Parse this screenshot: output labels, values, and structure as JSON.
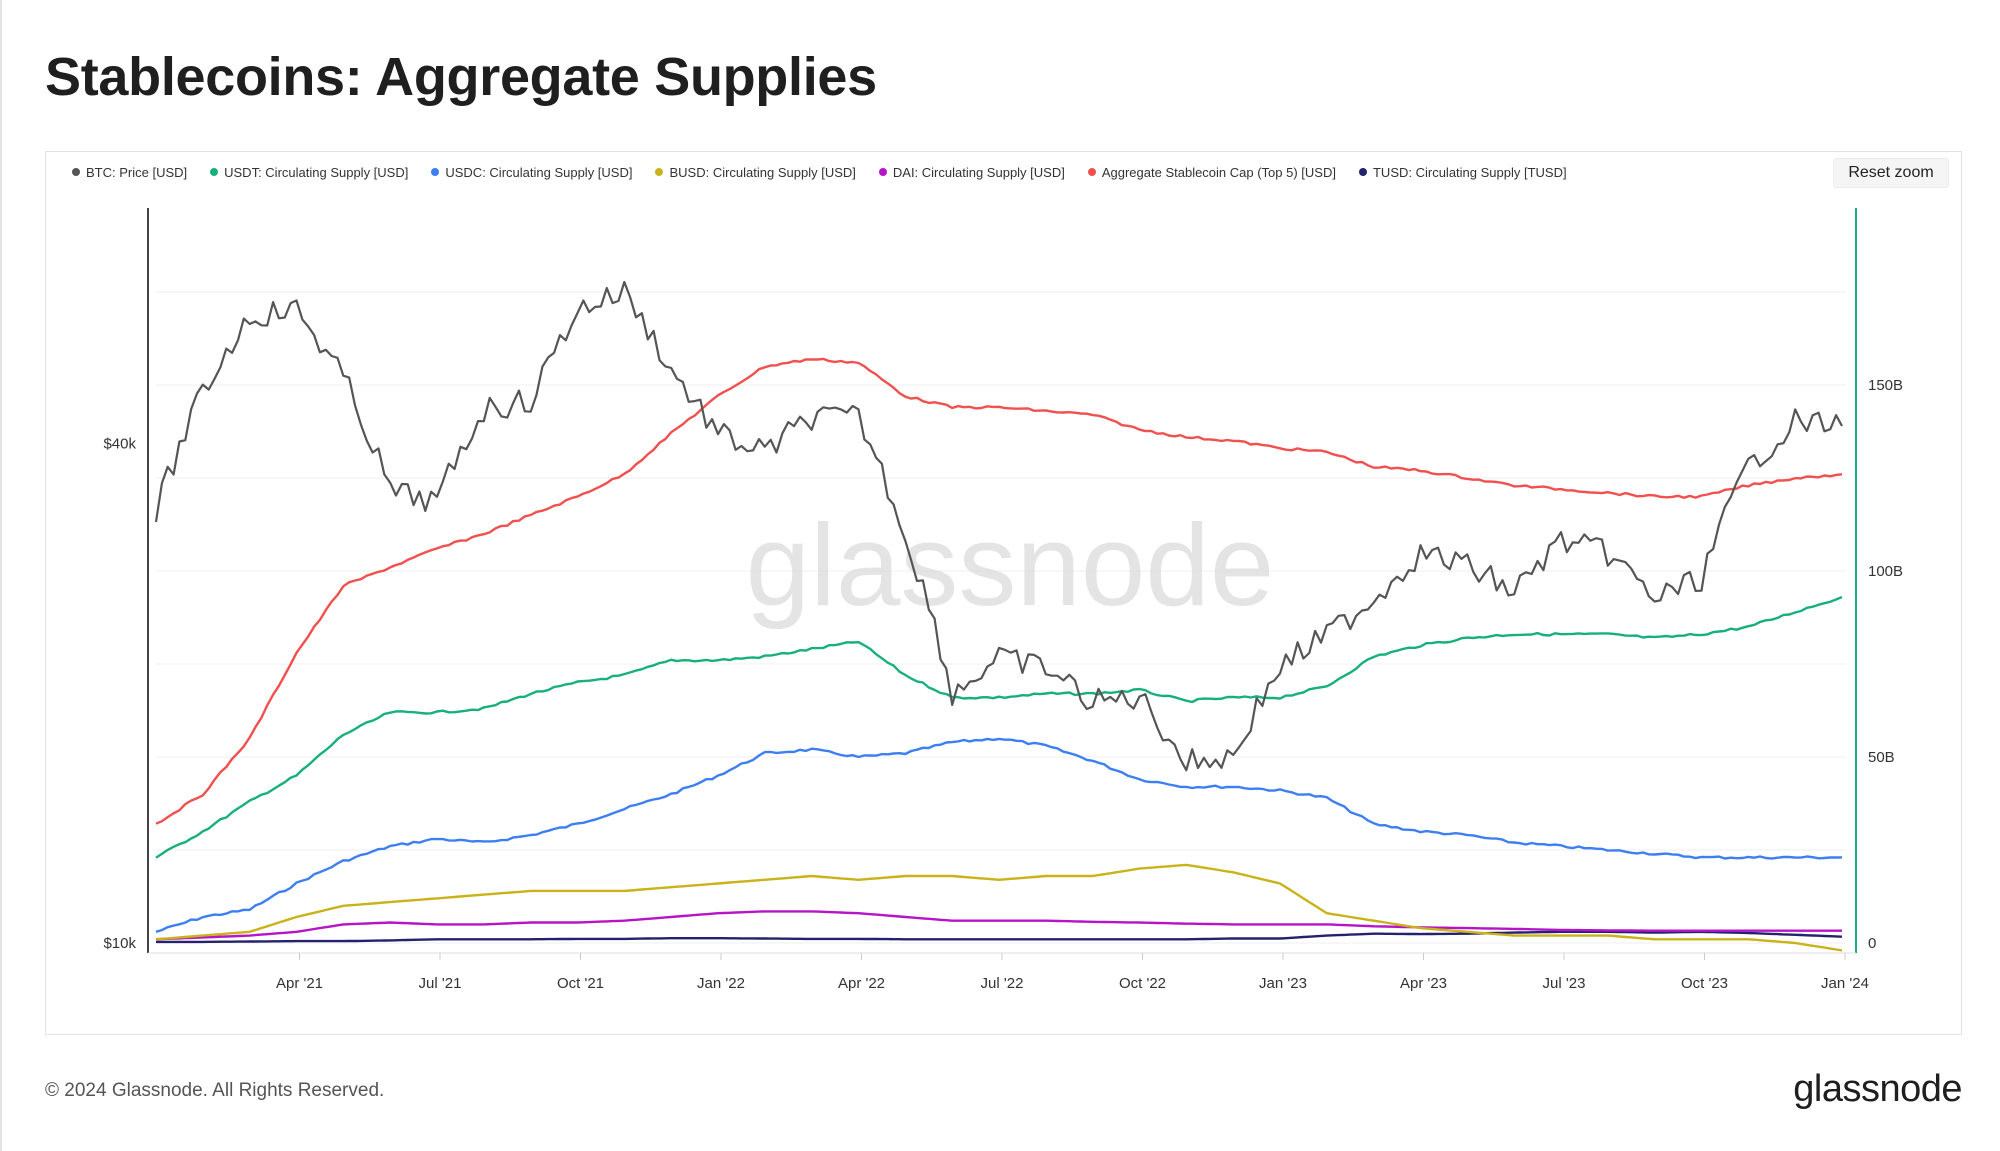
{
  "title": "Stablecoins: Aggregate Supplies",
  "footer": {
    "copyright": "© 2024 Glassnode. All Rights Reserved.",
    "logo": "glassnode"
  },
  "watermark": "glassnode",
  "reset_zoom_label": "Reset zoom",
  "legend": [
    {
      "label": "BTC: Price [USD]",
      "color": "#555555"
    },
    {
      "label": "USDT: Circulating Supply [USD]",
      "color": "#18b07a"
    },
    {
      "label": "USDC: Circulating Supply [USD]",
      "color": "#3d7ff2"
    },
    {
      "label": "BUSD: Circulating Supply [USD]",
      "color": "#c9b21a"
    },
    {
      "label": "DAI: Circulating Supply [USD]",
      "color": "#b514c7"
    },
    {
      "label": "Aggregate Stablecoin Cap (Top 5) [USD]",
      "color": "#f0504e"
    },
    {
      "label": "TUSD: Circulating Supply [TUSD]",
      "color": "#25216e"
    }
  ],
  "chart_data": {
    "type": "line",
    "title": "Stablecoins: Aggregate Supplies",
    "x_start": "2021-01",
    "x_ticks": [
      "Apr '21",
      "Jul '21",
      "Oct '21",
      "Jan '22",
      "Apr '22",
      "Jul '22",
      "Oct '22",
      "Jan '23",
      "Apr '23",
      "Jul '23",
      "Oct '23",
      "Jan '24"
    ],
    "left_axis": {
      "scale": "log",
      "ticks": [
        "$10k",
        "$40k"
      ],
      "tick_values": [
        10000,
        40000
      ]
    },
    "right_axis": {
      "scale": "linear",
      "ticks": [
        "0",
        "50B",
        "100B",
        "150B"
      ],
      "tick_values": [
        0,
        50,
        100,
        150
      ],
      "unit": "B"
    },
    "x": [
      "Jan '21",
      "Feb '21",
      "Mar '21",
      "Apr '21",
      "May '21",
      "Jun '21",
      "Jul '21",
      "Aug '21",
      "Sep '21",
      "Oct '21",
      "Nov '21",
      "Dec '21",
      "Jan '22",
      "Feb '22",
      "Mar '22",
      "Apr '22",
      "May '22",
      "Jun '22",
      "Jul '22",
      "Aug '22",
      "Sep '22",
      "Oct '22",
      "Nov '22",
      "Dec '22",
      "Jan '23",
      "Feb '23",
      "Mar '23",
      "Apr '23",
      "May '23",
      "Jun '23",
      "Jul '23",
      "Aug '23",
      "Sep '23",
      "Oct '23",
      "Nov '23",
      "Dec '23",
      "Jan '24"
    ],
    "series": [
      {
        "name": "BTC: Price [USD]",
        "axis": "left",
        "color": "#555555",
        "values": [
          33000,
          46000,
          57000,
          58000,
          48000,
          35000,
          34000,
          44000,
          45000,
          58000,
          61000,
          49000,
          41000,
          39000,
          43000,
          43000,
          31000,
          20000,
          22000,
          21500,
          19500,
          19800,
          16500,
          16800,
          21500,
          23500,
          26000,
          29500,
          28500,
          26500,
          30500,
          29500,
          26000,
          27500,
          37500,
          42500,
          42000
        ]
      },
      {
        "name": "USDT: Circulating Supply [USD]",
        "axis": "right",
        "color": "#18b07a",
        "values": [
          23,
          30,
          38,
          45,
          56,
          62,
          62,
          63,
          67,
          70,
          72,
          76,
          76,
          77,
          79,
          81,
          72,
          66,
          66,
          67,
          67,
          68,
          65,
          66,
          66,
          69,
          77,
          80,
          82,
          83,
          83,
          83,
          82,
          83,
          85,
          89,
          93
        ]
      },
      {
        "name": "USDC: Circulating Supply [USD]",
        "axis": "right",
        "color": "#3d7ff2",
        "values": [
          3,
          7,
          9,
          16,
          22,
          26,
          28,
          27,
          29,
          32,
          36,
          40,
          45,
          51,
          52,
          50,
          51,
          54,
          55,
          53,
          49,
          44,
          42,
          42,
          41,
          39,
          32,
          30,
          29,
          27,
          26,
          25,
          24,
          23,
          23,
          23,
          23
        ]
      },
      {
        "name": "BUSD: Circulating Supply [USD]",
        "axis": "right",
        "color": "#c9b21a",
        "values": [
          1,
          2,
          3,
          7,
          10,
          11,
          12,
          13,
          14,
          14,
          14,
          15,
          16,
          17,
          18,
          17,
          18,
          18,
          17,
          18,
          18,
          20,
          21,
          19,
          16,
          8,
          6,
          4,
          3,
          2,
          2,
          2,
          1,
          1,
          1,
          0,
          -2
        ]
      },
      {
        "name": "DAI: Circulating Supply [USD]",
        "axis": "right",
        "color": "#b514c7",
        "values": [
          1,
          1.5,
          2,
          3,
          5,
          5.5,
          5,
          5,
          5.5,
          5.5,
          6,
          7,
          8,
          8.5,
          8.5,
          8,
          7,
          6,
          6,
          6,
          5.7,
          5.5,
          5.2,
          5,
          5,
          5,
          4.5,
          4.2,
          4,
          3.8,
          3.5,
          3.4,
          3.3,
          3.3,
          3.3,
          3.3,
          3.3
        ]
      },
      {
        "name": "Aggregate Stablecoin Cap (Top 5) [USD]",
        "axis": "right",
        "color": "#f0504e",
        "values": [
          32,
          40,
          55,
          78,
          96,
          101,
          106,
          110,
          115,
          120,
          126,
          137,
          147,
          155,
          157,
          156,
          147,
          144,
          144,
          143,
          142,
          138,
          136,
          135,
          133,
          132,
          128,
          127,
          125,
          123,
          122,
          121,
          120,
          120,
          123,
          125,
          126
        ]
      },
      {
        "name": "TUSD: Circulating Supply [TUSD]",
        "axis": "right",
        "color": "#25216e",
        "values": [
          0.3,
          0.3,
          0.4,
          0.5,
          0.5,
          0.7,
          1,
          1,
          1,
          1.1,
          1.1,
          1.3,
          1.3,
          1.2,
          1.1,
          1.1,
          1,
          1,
          1,
          1,
          1,
          1,
          1,
          1.2,
          1.2,
          2,
          2.5,
          2.4,
          2.5,
          2.8,
          3,
          3,
          2.8,
          3,
          2.7,
          2.2,
          1.7
        ]
      }
    ]
  }
}
